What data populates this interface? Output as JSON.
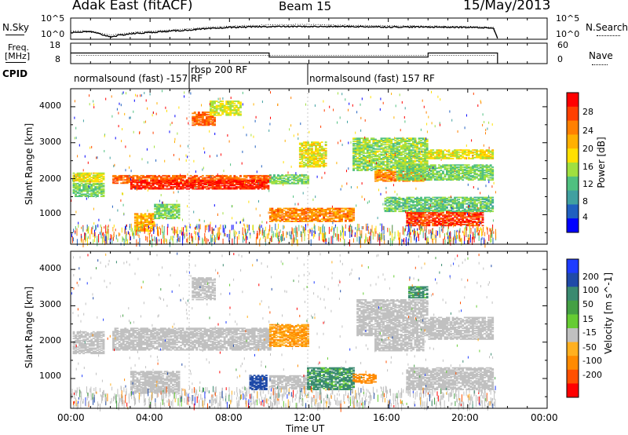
{
  "header": {
    "station": "Adak East (fitACF)",
    "beam": "Beam 15",
    "date": "15/May/2013"
  },
  "left_labels": {
    "nsky": "N.Sky",
    "freq_line1": "Freq.",
    "freq_line2": "[MHz]",
    "cpid": "CPID"
  },
  "right_labels": {
    "nsearch": "N.Search",
    "nave": "Nave"
  },
  "noise_axis": {
    "left_ticks": [
      "10^5",
      "10^0"
    ],
    "right_ticks": [
      "10^5",
      "10^0"
    ]
  },
  "freq_axis": {
    "left_ticks": [
      "18",
      "8"
    ],
    "right_ticks": [
      "60",
      "0"
    ]
  },
  "cpid_segments": [
    {
      "label": "normalsound (fast) -157 RF",
      "start_hour": 0,
      "end_hour": 6
    },
    {
      "label": "rbsp 200 RF",
      "start_hour": 6,
      "end_hour": 12
    },
    {
      "label": "normalsound (fast) 157 RF",
      "start_hour": 12,
      "end_hour": 21.5
    }
  ],
  "power_colorbar": {
    "label": "Power [dB]",
    "ticks": [
      "28",
      "24",
      "20",
      "16",
      "12",
      "8",
      "4"
    ],
    "colors": [
      "#ff0000",
      "#ff4000",
      "#ff8000",
      "#ffb000",
      "#ffe000",
      "#a0e040",
      "#50c080",
      "#40a0a0",
      "#2060c0",
      "#0000ff"
    ]
  },
  "velocity_colorbar": {
    "label": "Velocity [m s^-1]",
    "ticks": [
      "200",
      "100",
      "50",
      "15",
      "-15",
      "-50",
      "-100",
      "-200"
    ],
    "colors": [
      "#1e3cff",
      "#1f4aa8",
      "#3a8a70",
      "#44a044",
      "#66cc33",
      "#c0c0c0",
      "#ffb020",
      "#ff8a00",
      "#ff5000",
      "#ff0000"
    ]
  },
  "xaxis": {
    "title": "Time UT",
    "ticks": [
      "00:00",
      "04:00",
      "08:00",
      "12:00",
      "16:00",
      "20:00",
      "00:00"
    ]
  },
  "yaxis": {
    "title": "Slant Range [km]",
    "ticks": [
      "4000",
      "3000",
      "2000",
      "1000"
    ]
  },
  "chart_data": [
    {
      "type": "line",
      "title": "N.Sky",
      "x": [
        0,
        1,
        2,
        3,
        4,
        6,
        8,
        10,
        12,
        14,
        16,
        18,
        20,
        21.3,
        21.5
      ],
      "series": [
        {
          "name": "N.Sky",
          "values": [
            1.6,
            1.8,
            0.6,
            1.3,
            1.6,
            2.2,
            2.8,
            3.0,
            3.0,
            3.0,
            2.9,
            2.9,
            2.8,
            2.7,
            0.2
          ]
        },
        {
          "name": "N.Search",
          "values": [
            1.9,
            2.0,
            1.0,
            1.6,
            1.9,
            2.5,
            3.1,
            3.4,
            3.5,
            3.3,
            3.2,
            3.1,
            3.0,
            2.9,
            0.3
          ]
        }
      ],
      "xlim": [
        0,
        24
      ],
      "ylim": [
        0,
        5
      ]
    },
    {
      "type": "line",
      "title": "Freq.",
      "x": [
        0,
        6,
        10,
        12,
        18,
        21.5
      ],
      "series": [
        {
          "name": "Freq.",
          "values": [
            13.2,
            13.2,
            11.2,
            11.2,
            13.2,
            13.2
          ]
        },
        {
          "name": "Nave",
          "values": [
            24,
            24,
            24,
            24,
            24,
            24
          ]
        }
      ],
      "xlim": [
        0,
        24
      ],
      "ylim": [
        8,
        18
      ]
    },
    {
      "type": "heatmap",
      "title": "Power",
      "xlabel": "Time UT",
      "ylabel": "Slant Range [km]",
      "xlim": [
        0,
        24
      ],
      "ylim": [
        180,
        4500
      ],
      "regions": [
        {
          "start_hour": 0.1,
          "end_hour": 1.7,
          "center_km": 2050,
          "half_width_km": 120,
          "value": 14
        },
        {
          "start_hour": 0.1,
          "end_hour": 1.7,
          "center_km": 1700,
          "half_width_km": 180,
          "value": 10
        },
        {
          "start_hour": 2.1,
          "end_hour": 10.0,
          "center_km": 2000,
          "half_width_km": 110,
          "value": 22
        },
        {
          "start_hour": 3.0,
          "end_hour": 9.9,
          "center_km": 1850,
          "half_width_km": 120,
          "value": 25
        },
        {
          "start_hour": 3.2,
          "end_hour": 4.2,
          "center_km": 800,
          "half_width_km": 250,
          "value": 18
        },
        {
          "start_hour": 4.2,
          "end_hour": 5.4,
          "center_km": 1100,
          "half_width_km": 200,
          "value": 10
        },
        {
          "start_hour": 6.1,
          "end_hour": 7.2,
          "center_km": 3700,
          "half_width_km": 180,
          "value": 22
        },
        {
          "start_hour": 7.0,
          "end_hour": 8.5,
          "center_km": 4000,
          "half_width_km": 200,
          "value": 13
        },
        {
          "start_hour": 10.0,
          "end_hour": 11.9,
          "center_km": 2000,
          "half_width_km": 120,
          "value": 10
        },
        {
          "start_hour": 10.0,
          "end_hour": 14.2,
          "center_km": 1000,
          "half_width_km": 180,
          "value": 20
        },
        {
          "start_hour": 11.5,
          "end_hour": 12.8,
          "center_km": 2700,
          "half_width_km": 350,
          "value": 14
        },
        {
          "start_hour": 14.2,
          "end_hour": 18.0,
          "center_km": 2700,
          "half_width_km": 450,
          "value": 11
        },
        {
          "start_hour": 15.3,
          "end_hour": 17.8,
          "center_km": 2100,
          "half_width_km": 150,
          "value": 20
        },
        {
          "start_hour": 16.4,
          "end_hour": 21.3,
          "center_km": 2200,
          "half_width_km": 220,
          "value": 10
        },
        {
          "start_hour": 18.0,
          "end_hour": 21.3,
          "center_km": 2700,
          "half_width_km": 120,
          "value": 14
        },
        {
          "start_hour": 16.9,
          "end_hour": 20.8,
          "center_km": 900,
          "half_width_km": 200,
          "value": 24
        },
        {
          "start_hour": 15.8,
          "end_hour": 21.3,
          "center_km": 1300,
          "half_width_km": 200,
          "value": 9
        }
      ],
      "clutter_band_km": [
        200,
        500
      ]
    },
    {
      "type": "heatmap",
      "title": "Velocity",
      "xlabel": "Time UT",
      "ylabel": "Slant Range [km]",
      "xlim": [
        0,
        24
      ],
      "ylim": [
        180,
        4500
      ],
      "regions": [
        {
          "start_hour": 0.1,
          "end_hour": 1.7,
          "center_km": 2000,
          "half_width_km": 300,
          "value": 0
        },
        {
          "start_hour": 2.1,
          "end_hour": 10.0,
          "center_km": 2100,
          "half_width_km": 300,
          "value": 0
        },
        {
          "start_hour": 3.0,
          "end_hour": 5.4,
          "center_km": 900,
          "half_width_km": 300,
          "value": 0
        },
        {
          "start_hour": 6.1,
          "end_hour": 7.2,
          "center_km": 3500,
          "half_width_km": 300,
          "value": 0
        },
        {
          "start_hour": 10.0,
          "end_hour": 11.9,
          "center_km": 2200,
          "half_width_km": 300,
          "value": -50
        },
        {
          "start_hour": 10.0,
          "end_hour": 11.9,
          "center_km": 900,
          "half_width_km": 180,
          "value": 0
        },
        {
          "start_hour": 9.0,
          "end_hour": 9.8,
          "center_km": 900,
          "half_width_km": 200,
          "value": 120
        },
        {
          "start_hour": 11.9,
          "end_hour": 14.2,
          "center_km": 1000,
          "half_width_km": 300,
          "value": 40
        },
        {
          "start_hour": 14.2,
          "end_hour": 15.3,
          "center_km": 1000,
          "half_width_km": 120,
          "value": -80
        },
        {
          "start_hour": 14.4,
          "end_hour": 18.0,
          "center_km": 2700,
          "half_width_km": 500,
          "value": 0
        },
        {
          "start_hour": 15.3,
          "end_hour": 17.8,
          "center_km": 2000,
          "half_width_km": 220,
          "value": 0
        },
        {
          "start_hour": 18.0,
          "end_hour": 21.3,
          "center_km": 2400,
          "half_width_km": 300,
          "value": 0
        },
        {
          "start_hour": 16.9,
          "end_hour": 21.3,
          "center_km": 1000,
          "half_width_km": 300,
          "value": 0
        },
        {
          "start_hour": 17.0,
          "end_hour": 18.0,
          "center_km": 3400,
          "half_width_km": 150,
          "value": 40
        }
      ]
    }
  ]
}
